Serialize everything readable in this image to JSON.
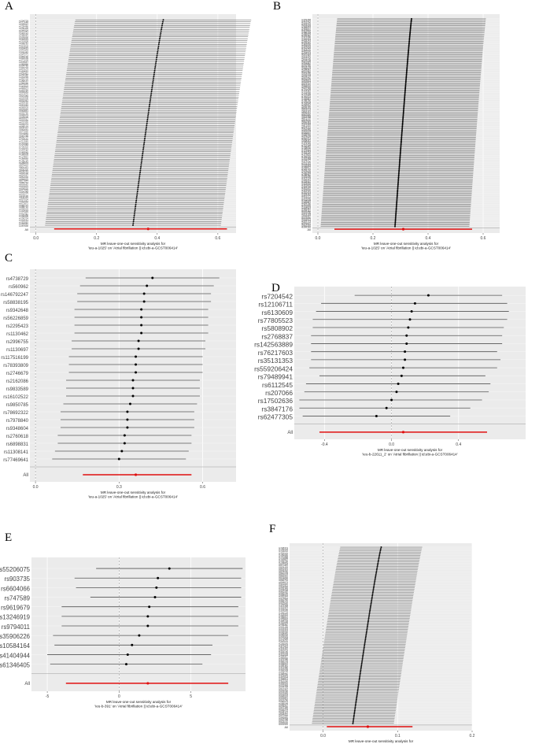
{
  "panels": [
    {
      "letter": "A"
    },
    {
      "letter": "B"
    },
    {
      "letter": "C"
    },
    {
      "letter": "D"
    },
    {
      "letter": "E"
    },
    {
      "letter": "F"
    }
  ],
  "chart_data": [
    {
      "type": "forest",
      "panel": "A",
      "xlabel": "MR leave-one-out sensitivity analysis for\n'ieu-a-1025' on 'Atrial fibrillation || id:ebi-a-GCST006414'",
      "xticks": [
        0.0,
        0.2,
        0.4,
        0.6
      ],
      "xlim": [
        -0.02,
        0.66
      ],
      "n_snps": 110,
      "point_range": [
        0.42,
        0.32
      ],
      "ci_halfwidth": 0.29,
      "all": {
        "estimate": 0.37,
        "lower": 0.06,
        "upper": 0.63
      }
    },
    {
      "type": "forest",
      "panel": "B",
      "xlabel": "MR leave-one-out sensitivity analysis for\n'ieu-a-1025' on 'Atrial fibrillation || id:ebi-a-GCST006414'",
      "xticks": [
        0.0,
        0.2,
        0.4,
        0.6
      ],
      "xlim": [
        -0.02,
        0.66
      ],
      "n_snps": 150,
      "point_range": [
        0.34,
        0.28
      ],
      "ci_halfwidth": 0.27,
      "all": {
        "estimate": 0.31,
        "lower": 0.06,
        "upper": 0.56
      }
    },
    {
      "type": "forest",
      "panel": "C",
      "xlabel": "MR leave-one-out sensitivity analysis for\n'ieu-a-1025' on 'Atrial fibrillation || id:ebi-a-GCST006414'",
      "xticks": [
        0.0,
        0.3,
        0.6
      ],
      "xlim": [
        -0.02,
        0.72
      ],
      "snps": [
        "rs4738729",
        "rs560962",
        "rs146792247",
        "rs58838195",
        "rs9342648",
        "rs56226859",
        "rs2295423",
        "rs1130462",
        "rs2996755",
        "rs1130697",
        "rs117516199",
        "rs78393809",
        "rs2746679",
        "rs2162086",
        "rs9833589",
        "rs16102522",
        "rs9850785",
        "rs78692322",
        "rs7978840",
        "rs9348604",
        "rs2760618",
        "rs6898831",
        "rs11308141",
        "rs77469641"
      ],
      "estimates": [
        0.42,
        0.4,
        0.39,
        0.39,
        0.38,
        0.38,
        0.38,
        0.38,
        0.37,
        0.37,
        0.36,
        0.36,
        0.36,
        0.35,
        0.35,
        0.35,
        0.34,
        0.33,
        0.33,
        0.33,
        0.32,
        0.32,
        0.31,
        0.3
      ],
      "ci_halfwidth": 0.24,
      "all": {
        "estimate": 0.36,
        "lower": 0.17,
        "upper": 0.56
      }
    },
    {
      "type": "forest",
      "panel": "D",
      "xlabel": "MR leave-one-out sensitivity analysis for\n'ieu-b-22611_2' on 'Atrial fibrillation || id:ebi-a-GCST006414'",
      "xticks": [
        -0.4,
        0.0,
        0.4
      ],
      "xticklabels": [
        "-0.4",
        "0.0",
        "0.4"
      ],
      "xlim": [
        -0.58,
        0.8
      ],
      "snps": [
        "rs7204542",
        "rs12106711",
        "rs6130609",
        "rs77805523",
        "rs5808902",
        "rs2768837",
        "rs142563889",
        "rs76217603",
        "rs35131353",
        "rs559206424",
        "rs79489941",
        "rs6112545",
        "rs207066",
        "rs17502636",
        "rs3847176",
        "rs62477305"
      ],
      "estimates": [
        0.22,
        0.14,
        0.12,
        0.11,
        0.1,
        0.09,
        0.09,
        0.08,
        0.08,
        0.07,
        0.06,
        0.04,
        0.03,
        0.0,
        -0.03,
        -0.09
      ],
      "ci_low": [
        -0.22,
        -0.42,
        -0.45,
        -0.47,
        -0.47,
        -0.48,
        -0.48,
        -0.48,
        -0.48,
        -0.49,
        -0.43,
        -0.51,
        -0.52,
        -0.55,
        -0.55,
        -0.53
      ],
      "ci_high": [
        0.66,
        0.69,
        0.7,
        0.69,
        0.67,
        0.66,
        0.66,
        0.63,
        0.65,
        0.63,
        0.56,
        0.59,
        0.58,
        0.54,
        0.47,
        0.35
      ],
      "all": {
        "estimate": 0.07,
        "lower": -0.43,
        "upper": 0.57
      }
    },
    {
      "type": "forest",
      "panel": "E",
      "xlabel": "MR leave-one-out sensitivity analysis for\n'ieu-b-391' on 'Atrial fibrillation || id:ebi-a-GCST006414'",
      "xticks": [
        -5,
        0,
        5
      ],
      "xticklabels": [
        "-5",
        "0",
        "5"
      ],
      "xlim": [
        -6.1,
        8.8
      ],
      "snps": [
        "rs55206075",
        "rs903735",
        "rs6604066",
        "rs747589",
        "rs9619679",
        "rs13246919",
        "rs9794011",
        "rs35906226",
        "rs10584164",
        "rs41404944",
        "rs61346405"
      ],
      "estimates": [
        3.5,
        2.7,
        2.6,
        2.5,
        2.1,
        2.0,
        2.0,
        1.4,
        0.9,
        0.6,
        0.5
      ],
      "ci_low": [
        -1.6,
        -3.1,
        -3.0,
        -2.0,
        -4.0,
        -4.0,
        -4.0,
        -4.6,
        -4.5,
        -5.0,
        -4.8
      ],
      "ci_high": [
        8.6,
        8.5,
        8.5,
        8.5,
        8.3,
        8.3,
        8.3,
        7.6,
        6.5,
        6.4,
        5.8
      ],
      "all": {
        "estimate": 2.0,
        "lower": -3.7,
        "upper": 7.6
      }
    },
    {
      "type": "forest",
      "panel": "F",
      "xlabel": "MR leave-one-out sensitivity analysis for\n'ieu-b-379' on 'Atrial fibrillation || id:ebi-a-GCST006414'",
      "xticks": [
        0.0,
        0.1,
        0.2
      ],
      "xticklabels": [
        "0.0",
        "0.1",
        "0.2"
      ],
      "xlim": [
        -0.045,
        0.2
      ],
      "n_snps": 110,
      "point_range": [
        0.078,
        0.04
      ],
      "ci_halfwidth": 0.055,
      "all": {
        "estimate": 0.06,
        "lower": 0.005,
        "upper": 0.12
      }
    }
  ]
}
